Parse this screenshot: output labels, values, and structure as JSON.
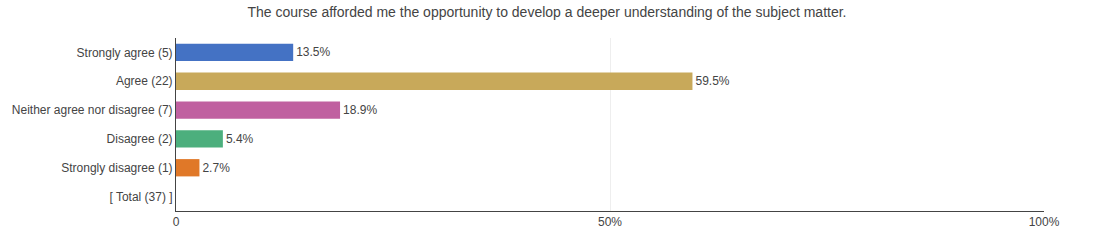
{
  "chart_data": {
    "type": "bar",
    "orientation": "horizontal",
    "title": "The course afforded me the opportunity to develop a deeper understanding of the subject matter.",
    "categories": [
      "Strongly agree (5)",
      "Agree (22)",
      "Neither agree nor disagree (7)",
      "Disagree (2)",
      "Strongly disagree (1)",
      "[ Total (37) ]"
    ],
    "values": [
      13.5,
      59.5,
      18.9,
      5.4,
      2.7,
      null
    ],
    "value_labels": [
      "13.5%",
      "59.5%",
      "18.9%",
      "5.4%",
      "2.7%",
      null
    ],
    "colors": [
      "#4472c4",
      "#c8a95a",
      "#c060a0",
      "#4caf7d",
      "#e07828",
      null
    ],
    "data_labels": true,
    "xlim": [
      0,
      100
    ],
    "xticks": [
      0,
      {
        "value": 50,
        "label": "50%"
      },
      {
        "value": 100,
        "label": "100%"
      }
    ],
    "grid": true
  }
}
